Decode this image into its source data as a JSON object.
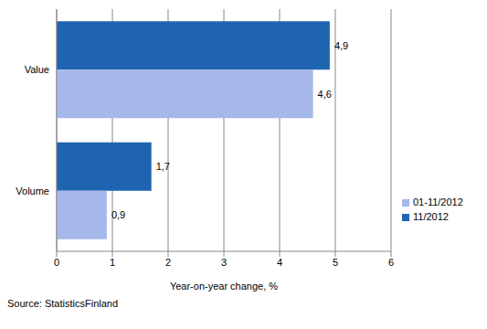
{
  "chart_data": {
    "type": "bar",
    "orientation": "horizontal",
    "categories": [
      "Value",
      "Volume"
    ],
    "series": [
      {
        "name": "11/2012",
        "color": "#1f64b0",
        "values": [
          4.9,
          1.7
        ],
        "value_labels": [
          "4,9",
          "1,7"
        ]
      },
      {
        "name": "01-11/2012",
        "color": "#a6b8ea",
        "values": [
          4.6,
          0.9
        ],
        "value_labels": [
          "4,6",
          "0,9"
        ]
      }
    ],
    "xlabel": "Year-on-year change, %",
    "xlim": [
      0,
      6
    ],
    "xticks": [
      0,
      1,
      2,
      3,
      4,
      5,
      6
    ],
    "grid": true,
    "legend": "lower right",
    "data_labels": true,
    "source": "Source: StatisticsFinland"
  }
}
